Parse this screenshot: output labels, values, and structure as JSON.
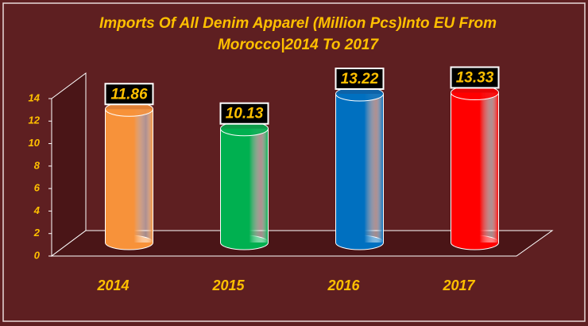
{
  "chart_data": {
    "type": "bar",
    "title": "Imports Of All Denim Apparel (Million Pcs)Into EU From Morocco|2014 To 2017",
    "categories": [
      "2014",
      "2015",
      "2016",
      "2017"
    ],
    "values": [
      11.86,
      10.13,
      13.22,
      13.33
    ],
    "colors": [
      "#f7923a",
      "#00b050",
      "#0070c0",
      "#ff0000"
    ],
    "ylim": [
      0,
      14
    ],
    "yticks": [
      0,
      2,
      4,
      6,
      8,
      10,
      12,
      14
    ],
    "grid": false
  }
}
